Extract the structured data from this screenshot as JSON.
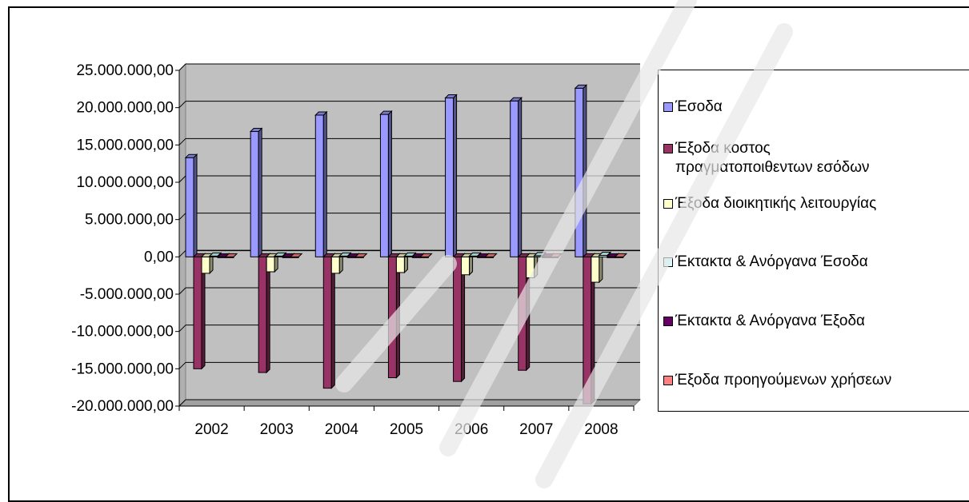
{
  "chart_data": {
    "type": "bar",
    "categories": [
      "2002",
      "2003",
      "2004",
      "2005",
      "2006",
      "2007",
      "2008"
    ],
    "ylim": [
      -20000000,
      25000000
    ],
    "y_ticks": [
      25000000,
      20000000,
      15000000,
      10000000,
      5000000,
      0,
      -5000000,
      -10000000,
      -15000000,
      -20000000
    ],
    "y_tick_labels": [
      "25.000.000,00",
      "20.000.000,00",
      "15.000.000,00",
      "10.000.000,00",
      "5.000.000,00",
      "0,00",
      "-5.000.000,00",
      "-10.000.000,00",
      "-15.000.000,00",
      "-20.000.000,00"
    ],
    "grid": true,
    "legend_position": "right",
    "title": "",
    "xlabel": "",
    "ylabel": "",
    "series": [
      {
        "name": "Έσοδα",
        "color": "#9999ff",
        "values": [
          13300000,
          16800000,
          19000000,
          19100000,
          21300000,
          20900000,
          22600000
        ]
      },
      {
        "name": "Έξοδα κοστος\nπραγματοποιθεντων εσόδων",
        "color": "#993366",
        "values": [
          -15000000,
          -15500000,
          -17600000,
          -16200000,
          -16700000,
          -15200000,
          -19700000
        ]
      },
      {
        "name": "Έξοδα διοικητικής λειτουργίας",
        "color": "#ffffcc",
        "values": [
          -2200000,
          -2000000,
          -2200000,
          -2100000,
          -2400000,
          -2800000,
          -3400000
        ]
      },
      {
        "name": "Έκτακτα & Ανόργανα Έσοδα",
        "color": "#ccffff",
        "values": [
          100000,
          100000,
          100000,
          100000,
          100000,
          150000,
          200000
        ]
      },
      {
        "name": "Έκτακτα & Ανόργανα Έξοδα",
        "color": "#660066",
        "values": [
          -50000,
          -50000,
          -50000,
          -50000,
          -50000,
          -50000,
          -50000
        ]
      },
      {
        "name": "Έξοδα προηγούμενων χρήσεων",
        "color": "#ff8080",
        "values": [
          0,
          0,
          0,
          0,
          0,
          0,
          0
        ]
      }
    ]
  }
}
